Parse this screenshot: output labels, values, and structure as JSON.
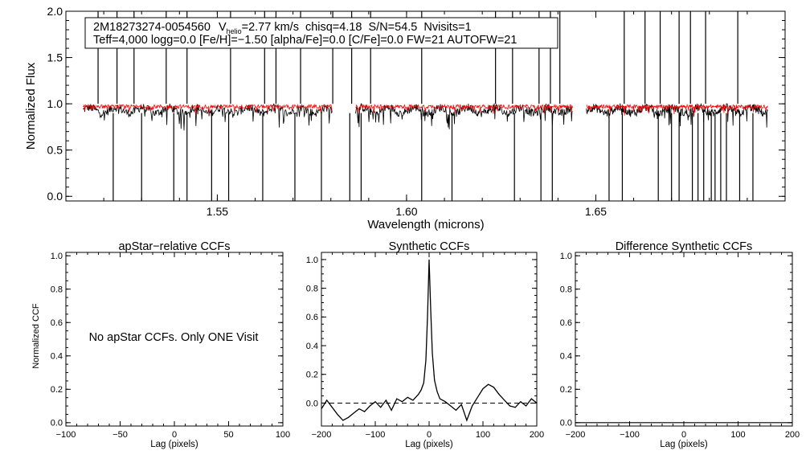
{
  "header": {
    "star_id": "2M18273274-0054560",
    "vhelio_symbol": "V",
    "vhelio_sub": "helio",
    "vhelio_value": "=2.77 km/s",
    "chisq": "chisq=4.18",
    "snr": "S/N=54.5",
    "nvisits": "Nvisits=1",
    "params": "Teff=4,000 logg=0.0 [Fe/H]=−1.50 [alpha/Fe]=0.0 [C/Fe]=0.0 FW=21 AUTOFW=21"
  },
  "note": "No apStar CCFs.  Only ONE Visit",
  "chart_data": [
    {
      "id": "spectrum",
      "type": "line",
      "title": "",
      "xlabel": "Wavelength (microns)",
      "ylabel": "Normalized Flux",
      "xlim": [
        1.51,
        1.7
      ],
      "ylim": [
        -0.05,
        2.0
      ],
      "xticks": [
        1.55,
        1.6,
        1.65
      ],
      "xtick_labels": [
        "1.55",
        "1.60",
        "1.65"
      ],
      "yticks": [
        0.0,
        0.5,
        1.0,
        1.5,
        2.0
      ],
      "ytick_labels": [
        "0.0",
        "0.5",
        "1.0",
        "1.5",
        "2.0"
      ],
      "chips": [
        [
          1.5145,
          1.5805
        ],
        [
          1.5865,
          1.644
        ],
        [
          1.6475,
          1.6955
        ]
      ],
      "series": [
        {
          "color": "#000000",
          "level": 0.93,
          "noise": 0.045
        },
        {
          "color": "#ff0000",
          "level": 0.97,
          "noise": 0.02
        }
      ],
      "spikes_up": [
        1.5185,
        1.5235,
        1.528,
        1.5365,
        1.542,
        1.5535,
        1.5625,
        1.5655,
        1.572,
        1.5805,
        1.5855,
        1.5905,
        1.604,
        1.6235,
        1.628,
        1.635,
        1.638,
        1.6405,
        1.6575,
        1.663,
        1.667,
        1.672,
        1.675,
        1.679,
        1.6875
      ],
      "spikes_down": [
        1.5225,
        1.53,
        1.5385,
        1.542,
        1.5485,
        1.553,
        1.562,
        1.5705,
        1.5775,
        1.585,
        1.588,
        1.604,
        1.612,
        1.6285,
        1.6355,
        1.6385,
        1.6535,
        1.657,
        1.6665,
        1.67,
        1.672,
        1.6755,
        1.677,
        1.6785,
        1.6805,
        1.6815,
        1.683,
        1.6845,
        1.688,
        1.6915
      ]
    },
    {
      "id": "apstar-ccf",
      "type": "line",
      "title": "apStar−relative CCFs",
      "xlabel": "Lag (pixels)",
      "ylabel": "Normalized CCF",
      "xlim": [
        -100,
        100
      ],
      "ylim": [
        -0.02,
        1.02
      ],
      "xticks": [
        -100,
        -50,
        0,
        50,
        100
      ],
      "xtick_labels": [
        "−100",
        "−50",
        "0",
        "50",
        "100"
      ],
      "yticks": [
        0.0,
        0.2,
        0.4,
        0.6,
        0.8,
        1.0
      ],
      "ytick_labels": [
        "0.0",
        "0.2",
        "0.4",
        "0.6",
        "0.8",
        "1.0"
      ],
      "series": []
    },
    {
      "id": "synthetic-ccf",
      "type": "line",
      "title": "Synthetic CCFs",
      "xlabel": "Lag (pixels)",
      "ylabel": "",
      "xlim": [
        -200,
        200
      ],
      "ylim": [
        -0.16,
        1.05
      ],
      "xticks": [
        -200,
        -100,
        0,
        100,
        200
      ],
      "xtick_labels": [
        "−200",
        "−100",
        "0",
        "100",
        "200"
      ],
      "yticks": [
        0.0,
        0.2,
        0.4,
        0.6,
        0.8,
        1.0
      ],
      "ytick_labels": [
        "0.0",
        "0.2",
        "0.4",
        "0.6",
        "0.8",
        "1.0"
      ],
      "zero_line": 0.0,
      "series": [
        {
          "x": [
            -200,
            -190,
            -180,
            -170,
            -160,
            -150,
            -140,
            -130,
            -120,
            -110,
            -100,
            -90,
            -80,
            -70,
            -60,
            -50,
            -40,
            -30,
            -20,
            -15,
            -10,
            -6,
            -3,
            0,
            3,
            6,
            10,
            15,
            20,
            30,
            40,
            50,
            60,
            70,
            80,
            90,
            100,
            110,
            120,
            130,
            140,
            150,
            160,
            170,
            180,
            190,
            200
          ],
          "y": [
            -0.04,
            0.02,
            -0.03,
            -0.08,
            -0.12,
            -0.1,
            -0.07,
            -0.04,
            -0.06,
            -0.02,
            0.01,
            -0.03,
            0.02,
            -0.05,
            0.03,
            0.01,
            0.04,
            0.02,
            0.06,
            0.09,
            0.14,
            0.3,
            0.6,
            1.0,
            0.65,
            0.35,
            0.16,
            0.08,
            0.03,
            0.01,
            -0.02,
            -0.05,
            -0.01,
            -0.12,
            -0.02,
            0.04,
            0.1,
            0.13,
            0.11,
            0.06,
            0.02,
            -0.02,
            -0.03,
            0.01,
            -0.02,
            0.03,
            0.0
          ]
        }
      ]
    },
    {
      "id": "difference-ccf",
      "type": "line",
      "title": "Difference Synthetic CCFs",
      "xlabel": "Lag (pixels)",
      "ylabel": "",
      "xlim": [
        -200,
        200
      ],
      "ylim": [
        -0.02,
        1.02
      ],
      "xticks": [
        -200,
        -100,
        0,
        100,
        200
      ],
      "xtick_labels": [
        "−200",
        "−100",
        "0",
        "100",
        "200"
      ],
      "yticks": [
        0.0,
        0.2,
        0.4,
        0.6,
        0.8,
        1.0
      ],
      "ytick_labels": [
        "0.0",
        "0.2",
        "0.4",
        "0.6",
        "0.8",
        "1.0"
      ],
      "series": [
        {
          "x": [
            -200,
            200
          ],
          "y": [
            0.0,
            0.0
          ]
        }
      ]
    }
  ]
}
